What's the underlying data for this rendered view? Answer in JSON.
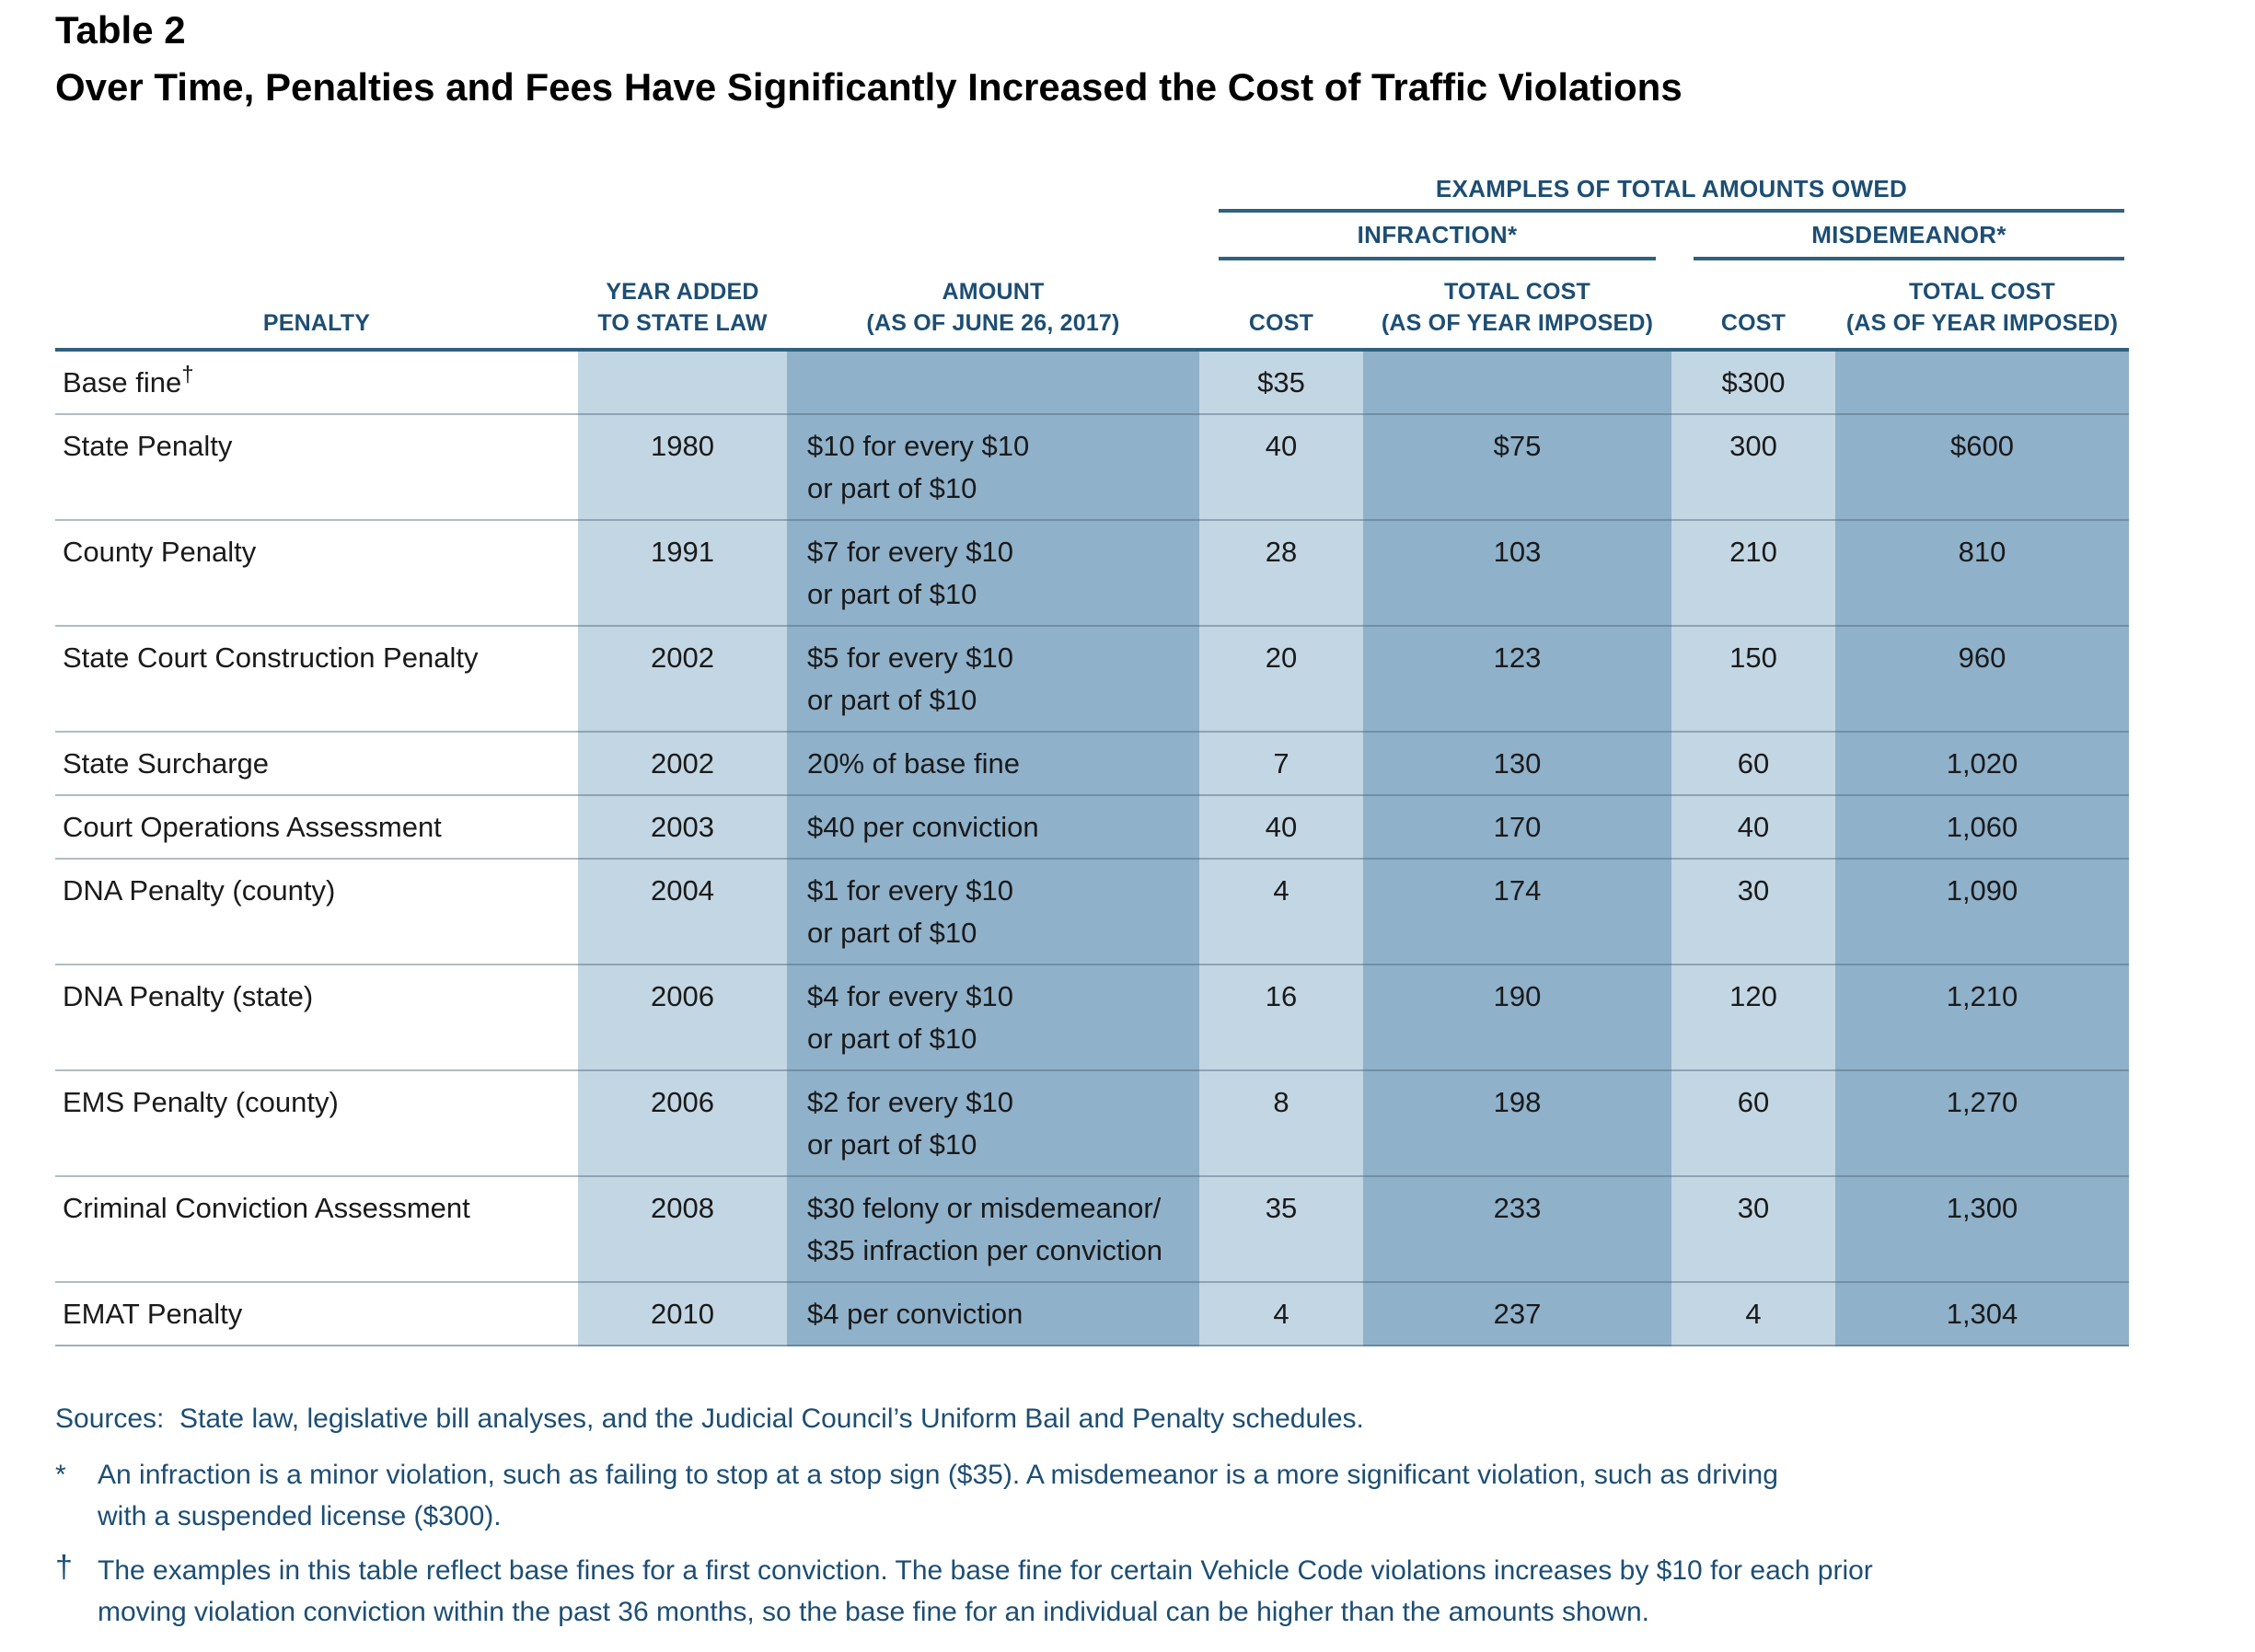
{
  "page": {
    "title": "Table 2",
    "subtitle": "Over Time, Penalties and Fees Have Significantly Increased the Cost of Traffic Violations"
  },
  "table": {
    "group_header": "EXAMPLES OF TOTAL AMOUNTS OWED",
    "subgroup_headers": {
      "infraction": "INFRACTION*",
      "misdemeanor": "MISDEMEANOR*"
    },
    "columns": [
      {
        "key": "penalty",
        "label": "PENALTY"
      },
      {
        "key": "year",
        "label": "YEAR ADDED\nTO STATE LAW"
      },
      {
        "key": "amount",
        "label": "AMOUNT\n(AS OF JUNE 26, 2017)"
      },
      {
        "key": "inf_cost",
        "label": "COST"
      },
      {
        "key": "inf_total",
        "label": "TOTAL COST\n(AS OF YEAR IMPOSED)"
      },
      {
        "key": "mis_cost",
        "label": "COST"
      },
      {
        "key": "mis_total",
        "label": "TOTAL COST\n(AS OF YEAR IMPOSED)"
      }
    ],
    "rows": [
      {
        "penalty": "Base fine",
        "penalty_sup": "†",
        "year": "",
        "amount": "",
        "inf_cost": "$35",
        "inf_total": "",
        "mis_cost": "$300",
        "mis_total": ""
      },
      {
        "penalty": "State Penalty",
        "year": "1980",
        "amount": "$10 for every $10\nor part of $10",
        "inf_cost": "40",
        "inf_total": "$75",
        "mis_cost": "300",
        "mis_total": "$600"
      },
      {
        "penalty": "County Penalty",
        "year": "1991",
        "amount": "$7 for every $10\nor part of $10",
        "inf_cost": "28",
        "inf_total": "103",
        "mis_cost": "210",
        "mis_total": "810"
      },
      {
        "penalty": "State Court Construction Penalty",
        "year": "2002",
        "amount": "$5 for every $10\nor part of $10",
        "inf_cost": "20",
        "inf_total": "123",
        "mis_cost": "150",
        "mis_total": "960"
      },
      {
        "penalty": "State Surcharge",
        "year": "2002",
        "amount": "20% of base fine",
        "inf_cost": "7",
        "inf_total": "130",
        "mis_cost": "60",
        "mis_total": "1,020"
      },
      {
        "penalty": "Court Operations Assessment",
        "year": "2003",
        "amount": "$40 per conviction",
        "inf_cost": "40",
        "inf_total": "170",
        "mis_cost": "40",
        "mis_total": "1,060"
      },
      {
        "penalty": "DNA Penalty (county)",
        "year": "2004",
        "amount": "$1 for every $10\nor part of $10",
        "inf_cost": "4",
        "inf_total": "174",
        "mis_cost": "30",
        "mis_total": "1,090"
      },
      {
        "penalty": "DNA Penalty (state)",
        "year": "2006",
        "amount": "$4 for every $10\nor part of $10",
        "inf_cost": "16",
        "inf_total": "190",
        "mis_cost": "120",
        "mis_total": "1,210"
      },
      {
        "penalty": "EMS Penalty (county)",
        "year": "2006",
        "amount": "$2 for every $10\nor part of $10",
        "inf_cost": "8",
        "inf_total": "198",
        "mis_cost": "60",
        "mis_total": "1,270"
      },
      {
        "penalty": "Criminal Conviction Assessment",
        "year": "2008",
        "amount": "$30 felony or misdemeanor/\n$35 infraction per conviction",
        "inf_cost": "35",
        "inf_total": "233",
        "mis_cost": "30",
        "mis_total": "1,300"
      },
      {
        "penalty": "EMAT Penalty",
        "year": "2010",
        "amount": "$4 per conviction",
        "inf_cost": "4",
        "inf_total": "237",
        "mis_cost": "4",
        "mis_total": "1,304"
      }
    ]
  },
  "footnotes": {
    "sources": "Sources:  State law, legislative bill analyses, and the Judicial Council’s Uniform Bail and Penalty schedules.",
    "notes": [
      {
        "marker": "*",
        "text": "An infraction is a minor violation, such as failing to stop at a stop sign ($35). A misdemeanor is a more significant violation, such as driving\nwith a suspended license ($300)."
      },
      {
        "marker": "†",
        "text": "The examples in this table reflect base fines for a first conviction. The base fine for certain Vehicle Code violations increases by $10 for each prior\nmoving violation conviction within the past 36 months, so the base fine for an individual can be higher than the amounts shown."
      }
    ]
  },
  "colors": {
    "header_text": "#1d4e74",
    "rule": "#30617f",
    "shade_light": "#c3d6e3",
    "shade_dark": "#8fb1ca",
    "body_text": "#1a1a1a"
  }
}
